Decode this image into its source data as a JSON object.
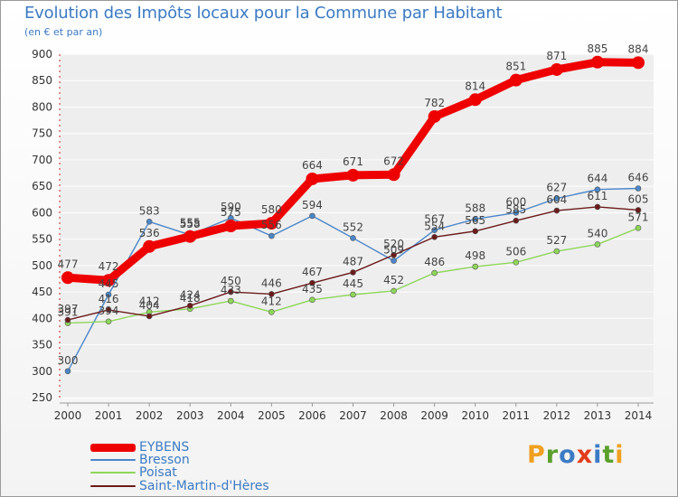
{
  "title": "Evolution des Impôts locaux pour la Commune par Habitant",
  "subtitle": "(en € et par an)",
  "brand": {
    "letters": [
      "P",
      "r",
      "o",
      "x",
      "i",
      "t",
      "i"
    ],
    "colors": [
      "#f0a020",
      "#5aa02c",
      "#3b7bc4",
      "#e23c1a",
      "#3b7bc4",
      "#5aa02c",
      "#f0a020"
    ]
  },
  "chart_data": {
    "type": "line",
    "title": "Evolution des Impôts locaux pour la Commune par Habitant",
    "subtitle": "(en € et par an)",
    "xlabel": "",
    "ylabel": "",
    "ylim": [
      250,
      900
    ],
    "yticks": [
      250,
      300,
      350,
      400,
      450,
      500,
      550,
      600,
      650,
      700,
      750,
      800,
      850,
      900
    ],
    "grid": true,
    "legend_position": "bottom-left",
    "categories": [
      "2000",
      "2001",
      "2002",
      "2003",
      "2004",
      "2005",
      "2006",
      "2007",
      "2008",
      "2009",
      "2010",
      "2011",
      "2012",
      "2013",
      "2014"
    ],
    "series": [
      {
        "name": "EYBENS",
        "color": "#ee0000",
        "values": [
          477,
          472,
          536,
          555,
          575,
          580,
          664,
          671,
          672,
          782,
          814,
          851,
          871,
          885,
          884
        ],
        "labels": [
          "477",
          "472",
          "536",
          "555",
          "575",
          "580",
          "664",
          "671",
          "672",
          "782",
          "814",
          "851",
          "871",
          "885",
          "884"
        ]
      },
      {
        "name": "Bresson",
        "color": "#4a86c8",
        "values": [
          300,
          445,
          583,
          558,
          590,
          556,
          594,
          552,
          509,
          567,
          588,
          600,
          627,
          644,
          646
        ],
        "labels": [
          "300",
          "445",
          "583",
          "558",
          "590",
          "556",
          "594",
          "552",
          "509",
          "567",
          "588",
          "600",
          "627",
          "644",
          "646"
        ]
      },
      {
        "name": "Poisat",
        "color": "#8ed65a",
        "values": [
          391,
          394,
          412,
          418,
          433,
          412,
          435,
          445,
          452,
          486,
          498,
          506,
          527,
          540,
          571
        ],
        "labels": [
          "391",
          "394",
          "412",
          "418",
          "433",
          "412",
          "435",
          "445",
          "452",
          "486",
          "498",
          "506",
          "527",
          "540",
          "571"
        ]
      },
      {
        "name": "Saint-Martin-d'Hères",
        "color": "#6b1a1a",
        "values": [
          397,
          416,
          404,
          424,
          450,
          446,
          467,
          487,
          520,
          554,
          565,
          585,
          604,
          611,
          605
        ],
        "labels": [
          "397",
          "416",
          "404",
          "424",
          "450",
          "446",
          "467",
          "487",
          "520",
          "554",
          "565",
          "585",
          "604",
          "611",
          "605"
        ]
      }
    ]
  }
}
